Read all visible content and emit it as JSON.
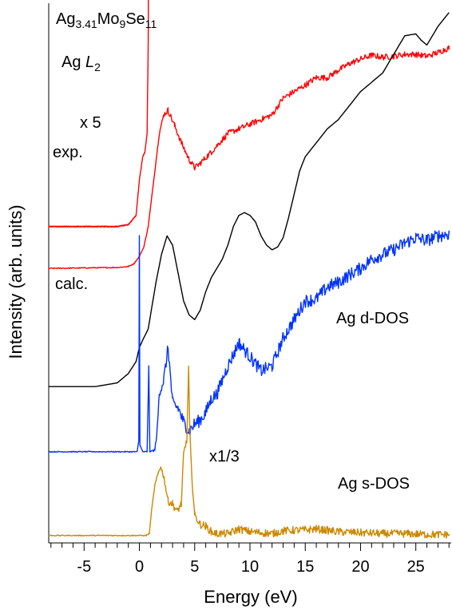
{
  "chart_data": {
    "type": "line",
    "xlabel": "Energy (eV)",
    "ylabel": "Intensity (arb. units)",
    "xlim": [
      -8.2,
      28.2
    ],
    "x_ticks": [
      -5,
      0,
      5,
      10,
      15,
      20,
      25
    ],
    "x_tick_labels": [
      "-5",
      "0",
      "5",
      "10",
      "15",
      "20",
      "25"
    ],
    "minor_tick_step": 1,
    "grid": false,
    "y_ticks_shown": false,
    "annotations": {
      "compound": {
        "base": "Ag",
        "sub1": "3.41",
        "mid1": "Mo",
        "sub2": "9",
        "mid2": "Se",
        "sub3": "11"
      },
      "edge": {
        "prefix": "Ag ",
        "italic": "L",
        "sub": "2"
      },
      "x5": "x 5",
      "exp": "exp.",
      "calc": "calc.",
      "ddos": "Ag d-DOS",
      "x13": "x1/3",
      "sdos": "Ag s-DOS"
    },
    "series": [
      {
        "key": "exp_x5",
        "color": "#ff0000",
        "noise": 0.4,
        "points": [
          [
            -8.2,
            3.4
          ],
          [
            -2,
            3.4
          ],
          [
            -1,
            3.42
          ],
          [
            -0.3,
            3.52
          ],
          [
            0,
            3.9
          ],
          [
            0.3,
            4.15
          ],
          [
            0.5,
            4.2
          ],
          [
            0.7,
            4.4
          ],
          [
            0.8,
            5.4
          ],
          [
            0.85,
            7.2
          ]
        ]
      },
      {
        "key": "exp",
        "color": "#ff0000",
        "noise": 0.45,
        "points": [
          [
            -8.2,
            2.95
          ],
          [
            -2,
            2.96
          ],
          [
            -1,
            2.97
          ],
          [
            -0.5,
            3.0
          ],
          [
            0,
            3.08
          ],
          [
            0.4,
            3.18
          ],
          [
            0.8,
            3.4
          ],
          [
            1.3,
            3.9
          ],
          [
            1.8,
            4.4
          ],
          [
            2.2,
            4.6
          ],
          [
            2.6,
            4.65
          ],
          [
            3.2,
            4.48
          ],
          [
            3.8,
            4.3
          ],
          [
            4.5,
            4.12
          ],
          [
            5,
            4.03
          ],
          [
            5.5,
            4.08
          ],
          [
            6.5,
            4.2
          ],
          [
            8,
            4.4
          ],
          [
            10,
            4.5
          ],
          [
            12,
            4.6
          ],
          [
            13,
            4.78
          ],
          [
            15,
            4.92
          ],
          [
            16,
            5.0
          ],
          [
            17,
            5.0
          ],
          [
            18,
            5.08
          ],
          [
            19,
            5.15
          ],
          [
            20,
            5.2
          ],
          [
            21,
            5.24
          ],
          [
            22,
            5.22
          ],
          [
            23,
            5.23
          ],
          [
            24,
            5.25
          ],
          [
            25,
            5.25
          ],
          [
            26,
            5.23
          ],
          [
            27,
            5.27
          ],
          [
            28,
            5.32
          ]
        ]
      },
      {
        "key": "calc",
        "color": "#000000",
        "noise": 0,
        "points": [
          [
            -8.2,
            1.68
          ],
          [
            -4,
            1.68
          ],
          [
            -2,
            1.72
          ],
          [
            -1,
            1.82
          ],
          [
            -0.3,
            1.95
          ],
          [
            0,
            2.1
          ],
          [
            0.3,
            2.18
          ],
          [
            0.8,
            2.3
          ],
          [
            1.5,
            2.8
          ],
          [
            2,
            3.1
          ],
          [
            2.5,
            3.3
          ],
          [
            3,
            3.2
          ],
          [
            3.5,
            2.9
          ],
          [
            4,
            2.6
          ],
          [
            4.5,
            2.45
          ],
          [
            5,
            2.4
          ],
          [
            5.5,
            2.5
          ],
          [
            6,
            2.7
          ],
          [
            6.5,
            2.85
          ],
          [
            7,
            2.95
          ],
          [
            7.5,
            3.05
          ],
          [
            8,
            3.2
          ],
          [
            8.5,
            3.4
          ],
          [
            9,
            3.52
          ],
          [
            9.5,
            3.55
          ],
          [
            10,
            3.52
          ],
          [
            10.5,
            3.45
          ],
          [
            11,
            3.3
          ],
          [
            11.5,
            3.2
          ],
          [
            12,
            3.15
          ],
          [
            12.5,
            3.18
          ],
          [
            13,
            3.28
          ],
          [
            13.5,
            3.5
          ],
          [
            14,
            3.75
          ],
          [
            14.5,
            4.0
          ],
          [
            15,
            4.15
          ],
          [
            16,
            4.3
          ],
          [
            17,
            4.45
          ],
          [
            18,
            4.55
          ],
          [
            19,
            4.7
          ],
          [
            20,
            4.85
          ],
          [
            21,
            4.95
          ],
          [
            22,
            5.05
          ],
          [
            23,
            5.25
          ],
          [
            24,
            5.45
          ],
          [
            25,
            5.47
          ],
          [
            25.5,
            5.4
          ],
          [
            26,
            5.35
          ],
          [
            27,
            5.55
          ],
          [
            28,
            5.7
          ]
        ]
      },
      {
        "key": "d_dos",
        "color": "#0033ff",
        "noise": 1.0,
        "points": [
          [
            -8.2,
            0.98
          ],
          [
            -0.2,
            0.98
          ],
          [
            -0.05,
            1.1
          ],
          [
            0,
            3.3
          ],
          [
            0.05,
            1.05
          ],
          [
            0.3,
            0.98
          ],
          [
            0.7,
            0.98
          ],
          [
            0.85,
            1.9
          ],
          [
            0.95,
            0.98
          ],
          [
            1.4,
            1.0
          ],
          [
            1.6,
            1.2
          ],
          [
            1.8,
            1.6
          ],
          [
            2.2,
            1.75
          ],
          [
            2.6,
            2.1
          ],
          [
            3,
            1.5
          ],
          [
            3.5,
            1.45
          ],
          [
            4,
            1.3
          ],
          [
            4.5,
            1.2
          ],
          [
            5,
            1.28
          ],
          [
            5.5,
            1.32
          ],
          [
            6,
            1.4
          ],
          [
            6.5,
            1.55
          ],
          [
            7,
            1.6
          ],
          [
            8,
            1.9
          ],
          [
            9,
            2.15
          ],
          [
            10,
            2.0
          ],
          [
            11,
            1.85
          ],
          [
            12,
            1.9
          ],
          [
            13,
            2.2
          ],
          [
            14,
            2.4
          ],
          [
            15,
            2.6
          ],
          [
            16,
            2.62
          ],
          [
            17,
            2.75
          ],
          [
            18,
            2.8
          ],
          [
            19,
            2.88
          ],
          [
            20,
            2.95
          ],
          [
            21,
            3.05
          ],
          [
            22,
            3.1
          ],
          [
            23,
            3.15
          ],
          [
            24,
            3.22
          ],
          [
            25,
            3.28
          ],
          [
            26,
            3.25
          ],
          [
            27,
            3.3
          ],
          [
            28,
            3.32
          ]
        ]
      },
      {
        "key": "s_dos",
        "color": "#cc8800",
        "noise": 0.6,
        "points": [
          [
            -8.2,
            0.08
          ],
          [
            0.6,
            0.08
          ],
          [
            0.9,
            0.1
          ],
          [
            1.1,
            0.35
          ],
          [
            1.4,
            0.62
          ],
          [
            1.7,
            0.75
          ],
          [
            1.9,
            0.82
          ],
          [
            2.2,
            0.72
          ],
          [
            2.6,
            0.45
          ],
          [
            3,
            0.42
          ],
          [
            3.4,
            0.34
          ],
          [
            3.8,
            0.42
          ],
          [
            4,
            0.95
          ],
          [
            4.3,
            1.12
          ],
          [
            4.45,
            1.9
          ],
          [
            4.55,
            1.25
          ],
          [
            4.7,
            0.8
          ],
          [
            5,
            0.3
          ],
          [
            5.5,
            0.2
          ],
          [
            6,
            0.18
          ],
          [
            6.5,
            0.12
          ],
          [
            7,
            0.1
          ],
          [
            8,
            0.1
          ],
          [
            9,
            0.15
          ],
          [
            10,
            0.12
          ],
          [
            12,
            0.1
          ],
          [
            13,
            0.13
          ],
          [
            15,
            0.14
          ],
          [
            16,
            0.15
          ],
          [
            18,
            0.12
          ],
          [
            20,
            0.11
          ],
          [
            22,
            0.1
          ],
          [
            24,
            0.1
          ],
          [
            26,
            0.09
          ],
          [
            28,
            0.09
          ]
        ]
      }
    ]
  }
}
